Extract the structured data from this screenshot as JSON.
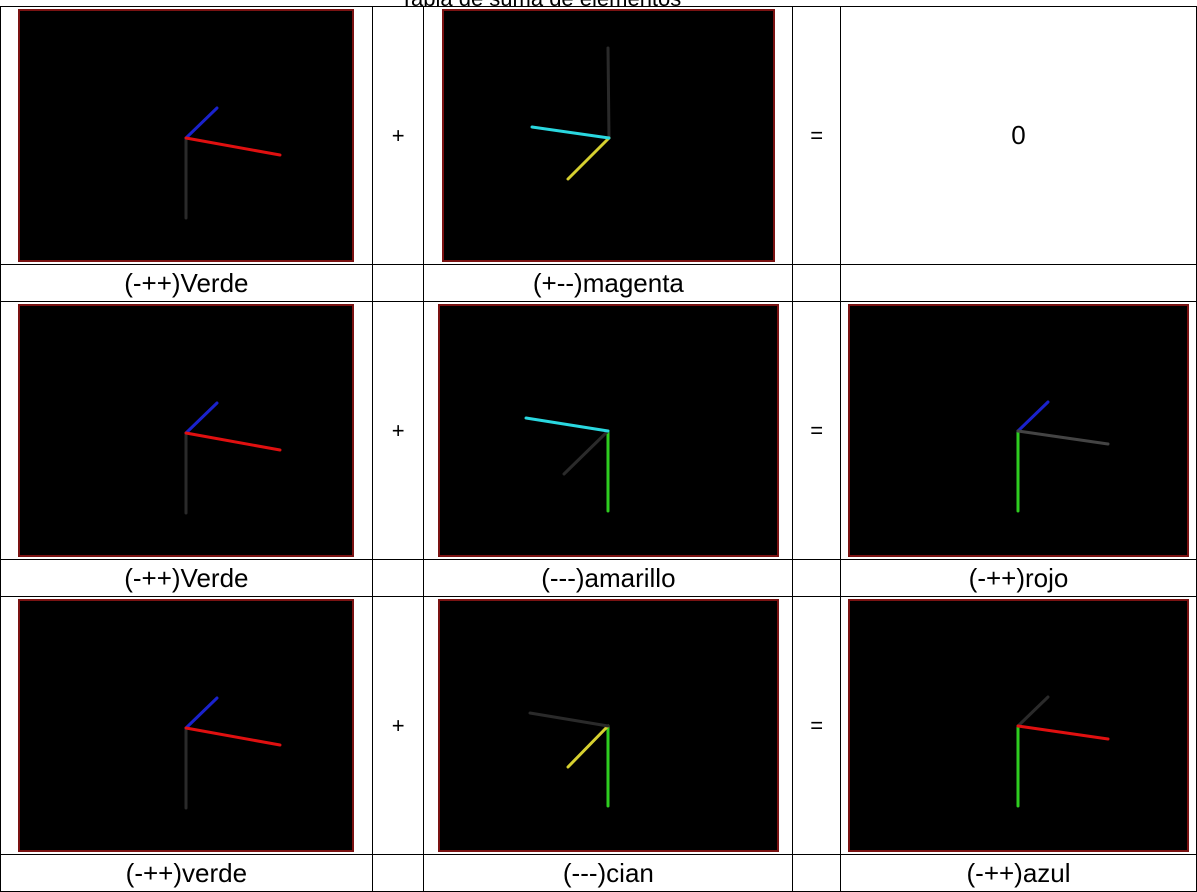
{
  "title": "Tabla de suma de elementos",
  "rows": [
    {
      "a": {
        "label": "(-++)Verde",
        "axes": {
          "x": "#e01010",
          "y": "#2a2a2a",
          "z": "#1a22cc"
        }
      },
      "op": "+",
      "b": {
        "label": "(+--)magenta",
        "axes": {
          "x": "#2ad8e0",
          "y": "#2a2a2a",
          "z": "#d6d030"
        }
      },
      "eq": "=",
      "result": {
        "label": "",
        "text": "0"
      }
    },
    {
      "a": {
        "label": "(-++)Verde",
        "axes": {
          "x": "#e01010",
          "y": "#2a2a2a",
          "z": "#1a22cc"
        }
      },
      "op": "+",
      "b": {
        "label": "(---)amarillo",
        "axes": {
          "x": "#2ad8e0",
          "y": "#2ecc20",
          "z": "#2a2a2a"
        }
      },
      "eq": "=",
      "result": {
        "label": "(-++)rojo",
        "axes": {
          "x": "#444444",
          "y": "#2ecc20",
          "z": "#1a22cc"
        }
      }
    },
    {
      "a": {
        "label": "(-++)verde",
        "axes": {
          "x": "#e01010",
          "y": "#2a2a2a",
          "z": "#1a22cc"
        }
      },
      "op": "+",
      "b": {
        "label": "(---)cian",
        "axes": {
          "x": "#2a2a2a",
          "y": "#2ecc20",
          "z": "#d6d030"
        }
      },
      "eq": "=",
      "result": {
        "label": "(-++)azul",
        "axes": {
          "x": "#e01010",
          "y": "#2ecc20",
          "z": "#2a2a2a"
        }
      }
    }
  ]
}
